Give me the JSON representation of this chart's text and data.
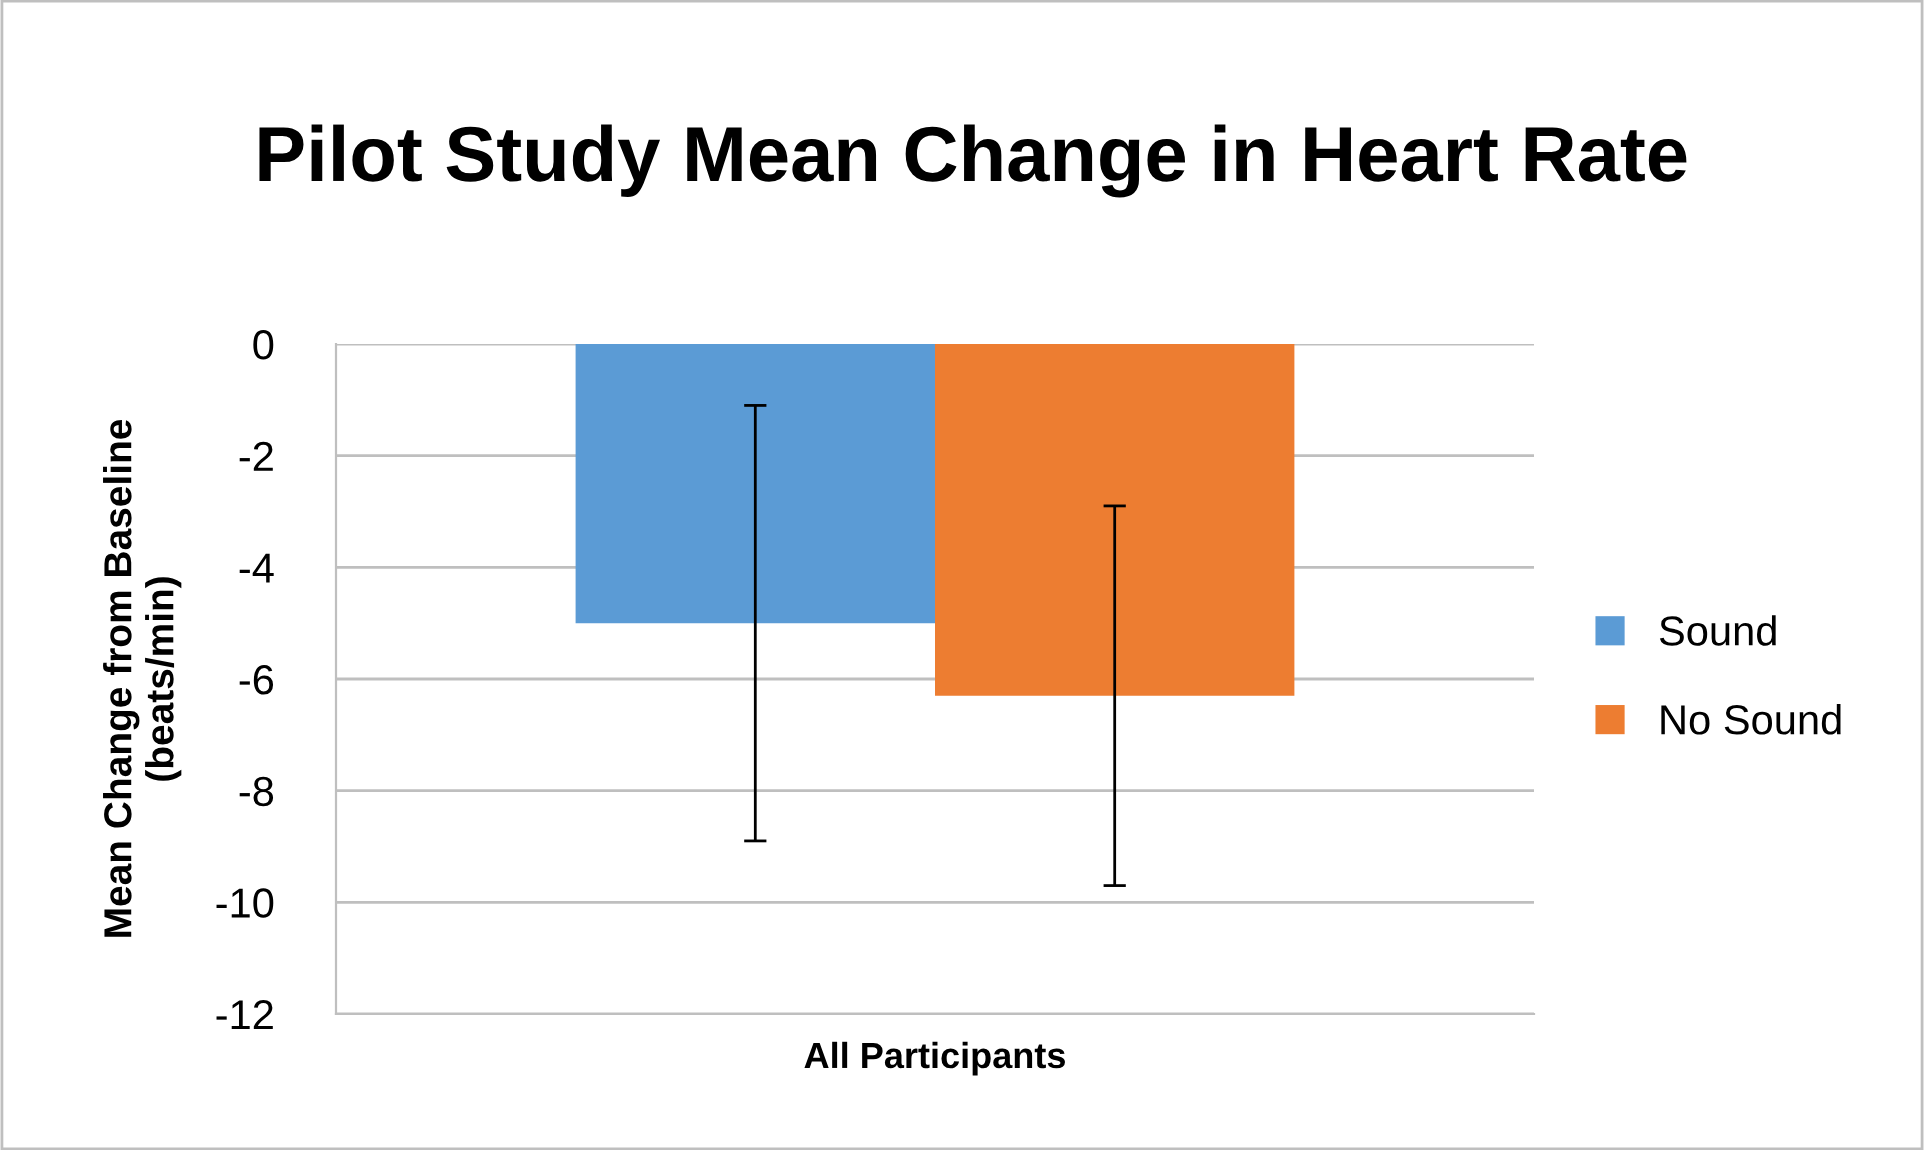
{
  "chart_data": {
    "type": "bar",
    "title": "Pilot Study Mean Change in Heart Rate",
    "ylabel": "Mean Change from Baseline\n(beats/min)",
    "categories": [
      "All Participants"
    ],
    "series": [
      {
        "name": "Sound",
        "color": "#5b9bd5",
        "values": [
          -5.0
        ],
        "errors": [
          3.9
        ]
      },
      {
        "name": "No Sound",
        "color": "#ed7d31",
        "values": [
          -6.3
        ],
        "errors": [
          3.4
        ]
      }
    ],
    "ylim": [
      -12,
      0
    ],
    "yticks": [
      {
        "value": -12,
        "label": "-12"
      },
      {
        "value": -10,
        "label": "-10"
      },
      {
        "value": -8,
        "label": "-8"
      },
      {
        "value": -6,
        "label": "-6"
      },
      {
        "value": -4,
        "label": "-4"
      },
      {
        "value": -2,
        "label": "-2"
      },
      0
    ],
    "grid": "y",
    "legend": "right"
  }
}
